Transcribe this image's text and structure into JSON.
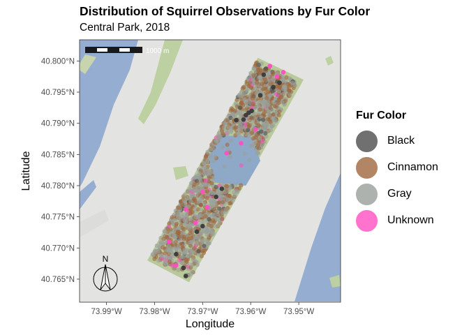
{
  "title": "Distribution of Squirrel Observations by Fur Color",
  "subtitle": "Central Park, 2018",
  "chart_data": {
    "type": "scatter",
    "title": "Distribution of Squirrel Observations by Fur Color",
    "subtitle": "Central Park, 2018",
    "xlabel": "Longitude",
    "ylabel": "Latitude",
    "xlim": [
      -73.9956,
      -73.9413
    ],
    "ylim": [
      40.7613,
      40.8034
    ],
    "x_ticks": [
      {
        "value": -73.99,
        "label": "73.99°W"
      },
      {
        "value": -73.98,
        "label": "73.98°W"
      },
      {
        "value": -73.97,
        "label": "73.97°W"
      },
      {
        "value": -73.96,
        "label": "73.96°W"
      },
      {
        "value": -73.95,
        "label": "73.95°W"
      }
    ],
    "y_ticks": [
      {
        "value": 40.765,
        "label": "40.765°N"
      },
      {
        "value": 40.77,
        "label": "40.770°N"
      },
      {
        "value": 40.775,
        "label": "40.775°N"
      },
      {
        "value": 40.78,
        "label": "40.780°N"
      },
      {
        "value": 40.785,
        "label": "40.785°N"
      },
      {
        "value": 40.79,
        "label": "40.790°N"
      },
      {
        "value": 40.795,
        "label": "40.795°N"
      },
      {
        "value": 40.8,
        "label": "40.800°N"
      }
    ],
    "legend": {
      "title": "Fur Color",
      "position": "right",
      "entries": [
        {
          "label": "Black",
          "color": "#4d4d4d"
        },
        {
          "label": "Cinnamon",
          "color": "#a0673f"
        },
        {
          "label": "Gray",
          "color": "#9aa09b"
        },
        {
          "label": "Unknown",
          "color": "#ff4fc3"
        }
      ]
    },
    "scale_bar_label": "1000 m",
    "north_arrow_label": "N",
    "park_corners": [
      {
        "lon": -73.9815,
        "lat": 40.768
      },
      {
        "lon": -73.9728,
        "lat": 40.7645
      },
      {
        "lon": -73.949,
        "lat": 40.797
      },
      {
        "lon": -73.9585,
        "lat": 40.8005
      }
    ],
    "reservoir": [
      {
        "lon": -73.966,
        "lat": 40.788
      },
      {
        "lon": -73.96,
        "lat": 40.788
      },
      {
        "lon": -73.958,
        "lat": 40.784
      },
      {
        "lon": -73.961,
        "lat": 40.78
      },
      {
        "lon": -73.9675,
        "lat": 40.7805
      },
      {
        "lon": -73.969,
        "lat": 40.7845
      }
    ],
    "series": [
      {
        "name": "Black",
        "color": "#3a3a3a",
        "points": [
          [
            -73.961,
            40.7913
          ],
          [
            -73.9604,
            40.7917
          ],
          [
            -73.9598,
            40.792
          ],
          [
            -73.9615,
            40.7906
          ],
          [
            -73.954,
            40.7965
          ],
          [
            -73.9553,
            40.7958
          ],
          [
            -73.97,
            40.7735
          ],
          [
            -73.9712,
            40.7726
          ],
          [
            -73.9735,
            40.7655
          ],
          [
            -73.974,
            40.7668
          ],
          [
            -73.9755,
            40.769
          ],
          [
            -73.963,
            40.7905
          ],
          [
            -73.966,
            40.7795
          ],
          [
            -73.9672,
            40.7782
          ],
          [
            -73.958,
            40.7945
          ],
          [
            -73.9573,
            40.7978
          ]
        ]
      },
      {
        "name": "Unknown",
        "color": "#ff4fc3",
        "points": [
          [
            -73.9545,
            40.7975
          ],
          [
            -73.9532,
            40.7982
          ],
          [
            -73.956,
            40.7992
          ],
          [
            -73.9715,
            40.774
          ],
          [
            -73.969,
            40.7765
          ],
          [
            -73.965,
            40.7852
          ],
          [
            -73.977,
            40.771
          ],
          [
            -73.9755,
            40.7672
          ],
          [
            -73.959,
            40.789
          ],
          [
            -73.962,
            40.7868
          ],
          [
            -73.97,
            40.779
          ],
          [
            -73.9735,
            40.7762
          ]
        ]
      }
    ]
  }
}
